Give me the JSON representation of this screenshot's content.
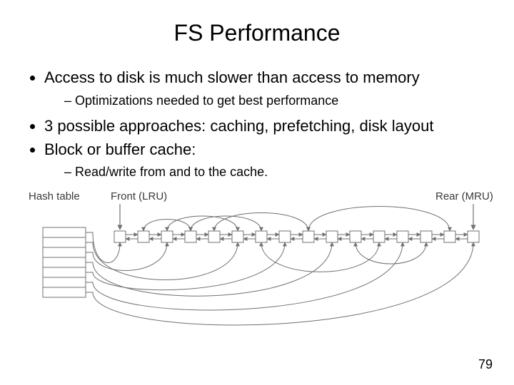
{
  "title": "FS Performance",
  "bullets": {
    "b1": "Access to disk is much slower than access to memory",
    "b1_sub1": "Optimizations needed to get best performance",
    "b2": "3 possible approaches: caching, prefetching, disk layout",
    "b3": "Block or buffer cache:",
    "b3_sub1": "Read/write from and to the cache."
  },
  "diagram": {
    "labels": {
      "hash_table": "Hash table",
      "front": "Front (LRU)",
      "rear": "Rear (MRU)"
    },
    "hash_rows": 7,
    "list_boxes": 16,
    "box_size": 16,
    "box_gap": 17,
    "stroke": "#707070",
    "fill": "#ffffff",
    "label_fontsize": 15
  },
  "page_number": "79"
}
